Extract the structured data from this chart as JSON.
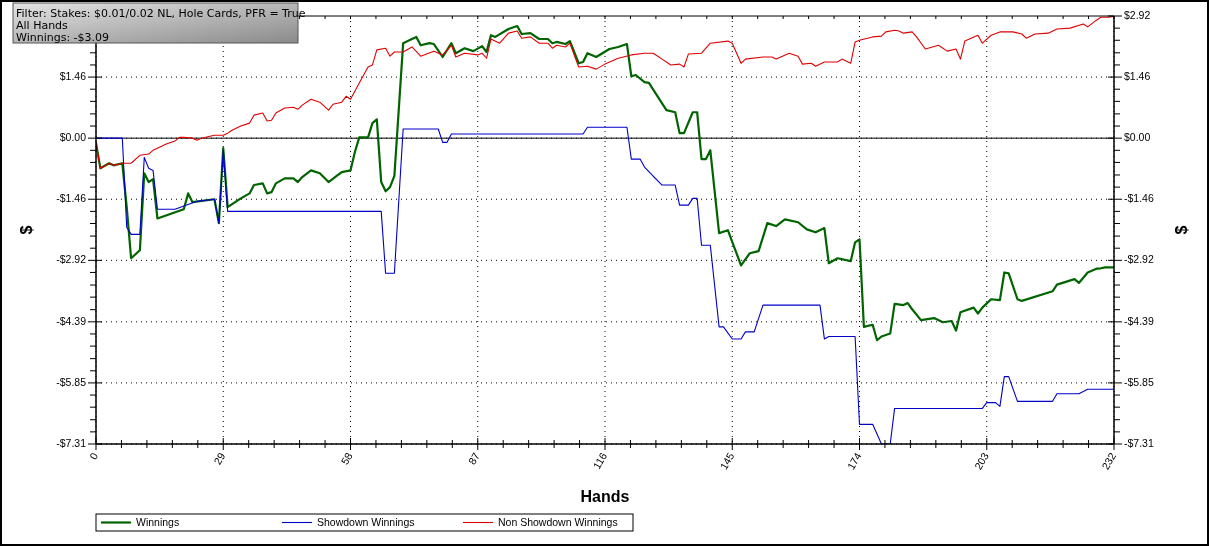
{
  "chart_data": {
    "type": "line",
    "xlabel": "Hands",
    "ylabel": "$",
    "y2label": "$",
    "annotations": [
      "Filter: Stakes: $0.01/0.02 NL, Hole Cards, PFR = True",
      "All Hands",
      "Winnings: -$3.09"
    ],
    "xlim": [
      0,
      232
    ],
    "xticks": [
      0,
      {
        "value": 5.8,
        "label": null
      },
      {
        "value": 11.6,
        "label": null
      },
      {
        "value": 17.4,
        "label": null
      },
      {
        "value": 23.2,
        "label": null
      },
      29,
      {
        "value": 34.8,
        "label": null
      },
      {
        "value": 40.6,
        "label": null
      },
      {
        "value": 46.4,
        "label": null
      },
      {
        "value": 52.2,
        "label": null
      },
      58,
      {
        "value": 63.8,
        "label": null
      },
      {
        "value": 69.6,
        "label": null
      },
      {
        "value": 75.4,
        "label": null
      },
      {
        "value": 81.2,
        "label": null
      },
      87,
      {
        "value": 92.8,
        "label": null
      },
      {
        "value": 98.6,
        "label": null
      },
      {
        "value": 104.4,
        "label": null
      },
      {
        "value": 110.2,
        "label": null
      },
      116,
      {
        "value": 121.8,
        "label": null
      },
      {
        "value": 127.6,
        "label": null
      },
      {
        "value": 133.4,
        "label": null
      },
      {
        "value": 139.2,
        "label": null
      },
      145,
      {
        "value": 150.8,
        "label": null
      },
      {
        "value": 156.6,
        "label": null
      },
      {
        "value": 162.4,
        "label": null
      },
      {
        "value": 168.2,
        "label": null
      },
      174,
      {
        "value": 179.8,
        "label": null
      },
      {
        "value": 185.6,
        "label": null
      },
      {
        "value": 191.4,
        "label": null
      },
      {
        "value": 197.2,
        "label": null
      },
      203,
      {
        "value": 208.8,
        "label": null
      },
      {
        "value": 214.6,
        "label": null
      },
      {
        "value": 220.4,
        "label": null
      },
      {
        "value": 226.2,
        "label": null
      },
      232
    ],
    "ylim": [
      -7.31,
      2.92
    ],
    "yticks": [
      {
        "value": -7.31,
        "label": "-$7.31"
      },
      {
        "value": -7.02,
        "label": null
      },
      {
        "value": -6.73,
        "label": null
      },
      {
        "value": -6.43,
        "label": null
      },
      {
        "value": -6.14,
        "label": null
      },
      {
        "value": -5.85,
        "label": "-$5.85"
      },
      {
        "value": -5.56,
        "label": null
      },
      {
        "value": -5.27,
        "label": null
      },
      {
        "value": -4.97,
        "label": null
      },
      {
        "value": -4.68,
        "label": null
      },
      {
        "value": -4.39,
        "label": "-$4.39"
      },
      {
        "value": -4.1,
        "label": null
      },
      {
        "value": -3.8,
        "label": null
      },
      {
        "value": -3.51,
        "label": null
      },
      {
        "value": -3.21,
        "label": null
      },
      {
        "value": -2.92,
        "label": "-$2.92"
      },
      {
        "value": -2.63,
        "label": null
      },
      {
        "value": -2.34,
        "label": null
      },
      {
        "value": -2.04,
        "label": null
      },
      {
        "value": -1.75,
        "label": null
      },
      {
        "value": -1.46,
        "label": "-$1.46"
      },
      {
        "value": -1.17,
        "label": null
      },
      {
        "value": -0.88,
        "label": null
      },
      {
        "value": -0.58,
        "label": null
      },
      {
        "value": -0.29,
        "label": null
      },
      {
        "value": 0,
        "label": "$0.00"
      },
      {
        "value": 0.29,
        "label": null
      },
      {
        "value": 0.58,
        "label": null
      },
      {
        "value": 0.88,
        "label": null
      },
      {
        "value": 1.17,
        "label": null
      },
      {
        "value": 1.46,
        "label": "$1.46"
      },
      {
        "value": 1.75,
        "label": null
      },
      {
        "value": 2.04,
        "label": null
      },
      {
        "value": 2.34,
        "label": null
      },
      {
        "value": 2.63,
        "label": null
      },
      {
        "value": 2.92,
        "label": null
      }
    ],
    "y2lim": [
      -7.31,
      2.92
    ],
    "y2ticks": [
      {
        "value": -7.31,
        "label": "-$7.31"
      },
      {
        "value": -7.02,
        "label": null
      },
      {
        "value": -6.73,
        "label": null
      },
      {
        "value": -6.43,
        "label": null
      },
      {
        "value": -6.14,
        "label": null
      },
      {
        "value": -5.85,
        "label": "-$5.85"
      },
      {
        "value": -5.56,
        "label": null
      },
      {
        "value": -5.27,
        "label": null
      },
      {
        "value": -4.97,
        "label": null
      },
      {
        "value": -4.68,
        "label": null
      },
      {
        "value": -4.39,
        "label": "-$4.39"
      },
      {
        "value": -4.1,
        "label": null
      },
      {
        "value": -3.8,
        "label": null
      },
      {
        "value": -3.51,
        "label": null
      },
      {
        "value": -3.21,
        "label": null
      },
      {
        "value": -2.92,
        "label": "-$2.92"
      },
      {
        "value": -2.63,
        "label": null
      },
      {
        "value": -2.34,
        "label": null
      },
      {
        "value": -2.04,
        "label": null
      },
      {
        "value": -1.75,
        "label": null
      },
      {
        "value": -1.46,
        "label": "-$1.46"
      },
      {
        "value": -1.17,
        "label": null
      },
      {
        "value": -0.88,
        "label": null
      },
      {
        "value": -0.58,
        "label": null
      },
      {
        "value": -0.29,
        "label": null
      },
      {
        "value": 0,
        "label": "$0.00"
      },
      {
        "value": 0.29,
        "label": null
      },
      {
        "value": 0.58,
        "label": null
      },
      {
        "value": 0.88,
        "label": null
      },
      {
        "value": 1.17,
        "label": null
      },
      {
        "value": 1.46,
        "label": "$1.46"
      },
      {
        "value": 1.75,
        "label": null
      },
      {
        "value": 2.04,
        "label": null
      },
      {
        "value": 2.34,
        "label": null
      },
      {
        "value": 2.63,
        "label": null
      },
      {
        "value": 2.92,
        "label": "$2.92"
      }
    ],
    "grid": true,
    "legend": "bottom",
    "marker": "none",
    "line_style": "solid",
    "ref_lines": [
      {
        "axis": "y",
        "value": 0,
        "color": "#000000"
      }
    ],
    "series": [
      {
        "name": "Winnings",
        "color": "#006400",
        "x": [
          0,
          1,
          3,
          4,
          6,
          7,
          8,
          10,
          11,
          12,
          13,
          14,
          20,
          21,
          22,
          27,
          28,
          29,
          30,
          33,
          35,
          36,
          38,
          39,
          40,
          41,
          43,
          45,
          46,
          47,
          49,
          51,
          53,
          55,
          56,
          58,
          59,
          60,
          62,
          63,
          64,
          65,
          66,
          67,
          68,
          70,
          72,
          73,
          74,
          76,
          77,
          79,
          81,
          82,
          84,
          86,
          88,
          89,
          90,
          91,
          94,
          96,
          97,
          99,
          101,
          103,
          104,
          105,
          107,
          108,
          110,
          111,
          112,
          114,
          117,
          119,
          121,
          122,
          123,
          125,
          126,
          130,
          132,
          133,
          134,
          136,
          137,
          138,
          139,
          140,
          142,
          144,
          147,
          149,
          151,
          153,
          155,
          157,
          160,
          162,
          164,
          166,
          167,
          169,
          172,
          173,
          174,
          175,
          177,
          178,
          179,
          181,
          182,
          184,
          185,
          186,
          188,
          191,
          193,
          195,
          196,
          197,
          200,
          201,
          202,
          204,
          206,
          207,
          208,
          210,
          211,
          218,
          219,
          223,
          224,
          226,
          228,
          229,
          230,
          232
        ],
        "values": [
          -0.12,
          -0.72,
          -0.6,
          -0.65,
          -0.6,
          -1.65,
          -2.87,
          -2.68,
          -0.84,
          -1.05,
          -0.98,
          -1.92,
          -1.7,
          -1.32,
          -1.53,
          -1.46,
          -2.03,
          -0.24,
          -1.65,
          -1.44,
          -1.32,
          -1.12,
          -1.08,
          -1.32,
          -1.29,
          -1.08,
          -0.96,
          -0.96,
          -1.05,
          -0.93,
          -0.77,
          -0.84,
          -1.05,
          -0.89,
          -0.81,
          -0.77,
          -0.33,
          0.02,
          0.02,
          0.36,
          0.45,
          -1.05,
          -1.27,
          -1.17,
          -0.9,
          2.27,
          2.37,
          2.42,
          2.22,
          2.27,
          2.25,
          1.94,
          2.27,
          2.03,
          2.15,
          2.08,
          2.2,
          2.06,
          2.46,
          2.42,
          2.61,
          2.68,
          2.49,
          2.51,
          2.37,
          2.37,
          2.27,
          2.3,
          2.25,
          2.32,
          1.79,
          1.82,
          2.03,
          1.94,
          2.13,
          2.18,
          2.25,
          1.48,
          1.51,
          1.34,
          1.32,
          0.67,
          0.62,
          0.12,
          0.12,
          0.62,
          0.62,
          -0.5,
          -0.5,
          -0.29,
          -2.27,
          -2.2,
          -3.04,
          -2.75,
          -2.7,
          -2.03,
          -2.1,
          -1.94,
          -2.01,
          -2.18,
          -2.25,
          -2.15,
          -2.99,
          -2.87,
          -2.94,
          -2.49,
          -2.42,
          -4.51,
          -4.46,
          -4.83,
          -4.74,
          -4.67,
          -3.96,
          -3.99,
          -3.94,
          -4.09,
          -4.35,
          -4.3,
          -4.4,
          -4.37,
          -4.6,
          -4.16,
          -4.05,
          -4.19,
          -4.05,
          -3.85,
          -3.87,
          -3.21,
          -3.23,
          -3.85,
          -3.89,
          -3.66,
          -3.5,
          -3.37,
          -3.46,
          -3.21,
          -3.12,
          -3.11,
          -3.09,
          -3.09
        ]
      },
      {
        "name": "Showdown Winnings",
        "color": "#0000c8",
        "x": [
          0,
          6,
          7,
          8,
          10,
          11,
          12,
          13,
          14,
          18,
          23,
          27,
          28,
          29,
          30,
          65,
          66,
          68,
          70,
          78,
          79,
          80,
          81,
          111,
          112,
          121,
          122,
          124,
          125,
          127,
          129,
          132,
          133,
          135,
          136,
          137,
          138,
          140,
          142,
          143,
          145,
          147,
          148,
          150,
          152,
          165,
          166,
          167,
          173,
          174,
          177,
          179,
          181,
          182,
          202,
          203,
          205,
          206,
          207,
          208,
          210,
          218,
          219,
          224,
          226,
          230,
          232
        ],
        "values": [
          0,
          0,
          -2.13,
          -2.3,
          -2.3,
          -0.46,
          -0.72,
          -0.77,
          -1.7,
          -1.7,
          -1.51,
          -1.46,
          -2.03,
          -0.29,
          -1.75,
          -1.75,
          -3.23,
          -3.23,
          0.22,
          0.22,
          -0.1,
          -0.1,
          0.1,
          0.1,
          0.26,
          0.26,
          -0.5,
          -0.5,
          -0.69,
          -0.91,
          -1.12,
          -1.12,
          -1.6,
          -1.6,
          -1.44,
          -1.44,
          -2.56,
          -2.56,
          -4.51,
          -4.51,
          -4.8,
          -4.8,
          -4.63,
          -4.63,
          -3.99,
          -3.99,
          -4.8,
          -4.74,
          -4.74,
          -6.84,
          -6.84,
          -7.31,
          -7.31,
          -6.46,
          -6.46,
          -6.32,
          -6.32,
          -6.41,
          -5.7,
          -5.7,
          -6.29,
          -6.29,
          -6.11,
          -6.11,
          -6,
          -6,
          -6
        ]
      },
      {
        "name": "Non Showdown Winnings",
        "color": "#e00000",
        "x": [
          0,
          1,
          3,
          4,
          6,
          8,
          10,
          12,
          13,
          14,
          16,
          18,
          19,
          20,
          22,
          23,
          24,
          27,
          29,
          30,
          31,
          33,
          35,
          36,
          38,
          39,
          40,
          41,
          43,
          45,
          46,
          47,
          49,
          51,
          53,
          54,
          56,
          57,
          58,
          60,
          61,
          62,
          63,
          64,
          66,
          67,
          68,
          70,
          72,
          74,
          77,
          79,
          81,
          82,
          84,
          87,
          88,
          89,
          90,
          92,
          94,
          96,
          97,
          99,
          101,
          103,
          104,
          105,
          107,
          108,
          110,
          112,
          114,
          116,
          119,
          122,
          125,
          127,
          129,
          131,
          133,
          134,
          135,
          138,
          140,
          144,
          145,
          147,
          148,
          152,
          154,
          155,
          158,
          160,
          161,
          163,
          164,
          166,
          169,
          170,
          172,
          173,
          174,
          177,
          179,
          180,
          182,
          183,
          184,
          186,
          187,
          189,
          192,
          194,
          196,
          197,
          198,
          201,
          202,
          204,
          206,
          209,
          211,
          212,
          214,
          217,
          219,
          222,
          225,
          226,
          228,
          229,
          231,
          232
        ],
        "values": [
          -0.12,
          -0.72,
          -0.6,
          -0.65,
          -0.6,
          -0.6,
          -0.41,
          -0.38,
          -0.29,
          -0.24,
          -0.14,
          -0.07,
          0.02,
          0.02,
          0,
          -0.05,
          0,
          0.07,
          0.07,
          0.12,
          0.19,
          0.29,
          0.36,
          0.55,
          0.6,
          0.41,
          0.43,
          0.6,
          0.72,
          0.74,
          0.69,
          0.79,
          0.93,
          0.86,
          0.67,
          0.81,
          0.86,
          1,
          0.93,
          1.32,
          1.51,
          1.7,
          1.75,
          2.11,
          2.15,
          1.96,
          2.06,
          2.06,
          2.18,
          1.96,
          2.08,
          1.99,
          2.22,
          1.94,
          2.03,
          1.99,
          2.03,
          1.91,
          2.37,
          2.27,
          2.51,
          2.56,
          2.39,
          2.42,
          2.27,
          2.27,
          2.15,
          2.22,
          2.18,
          2.27,
          1.7,
          1.72,
          1.65,
          1.77,
          1.91,
          1.99,
          2.03,
          2.03,
          1.89,
          1.75,
          1.77,
          1.7,
          2.01,
          2.03,
          2.27,
          2.32,
          2.27,
          1.79,
          1.89,
          1.94,
          1.94,
          1.89,
          2.03,
          1.96,
          1.77,
          1.79,
          1.72,
          1.82,
          1.82,
          1.89,
          1.79,
          2.3,
          2.34,
          2.42,
          2.44,
          2.54,
          2.58,
          2.56,
          2.51,
          2.54,
          2.42,
          2.13,
          2.22,
          2.08,
          2.13,
          1.89,
          2.32,
          2.46,
          2.27,
          2.46,
          2.54,
          2.54,
          2.49,
          2.39,
          2.49,
          2.51,
          2.61,
          2.63,
          2.73,
          2.66,
          2.82,
          2.89,
          2.89,
          2.92
        ]
      }
    ]
  }
}
